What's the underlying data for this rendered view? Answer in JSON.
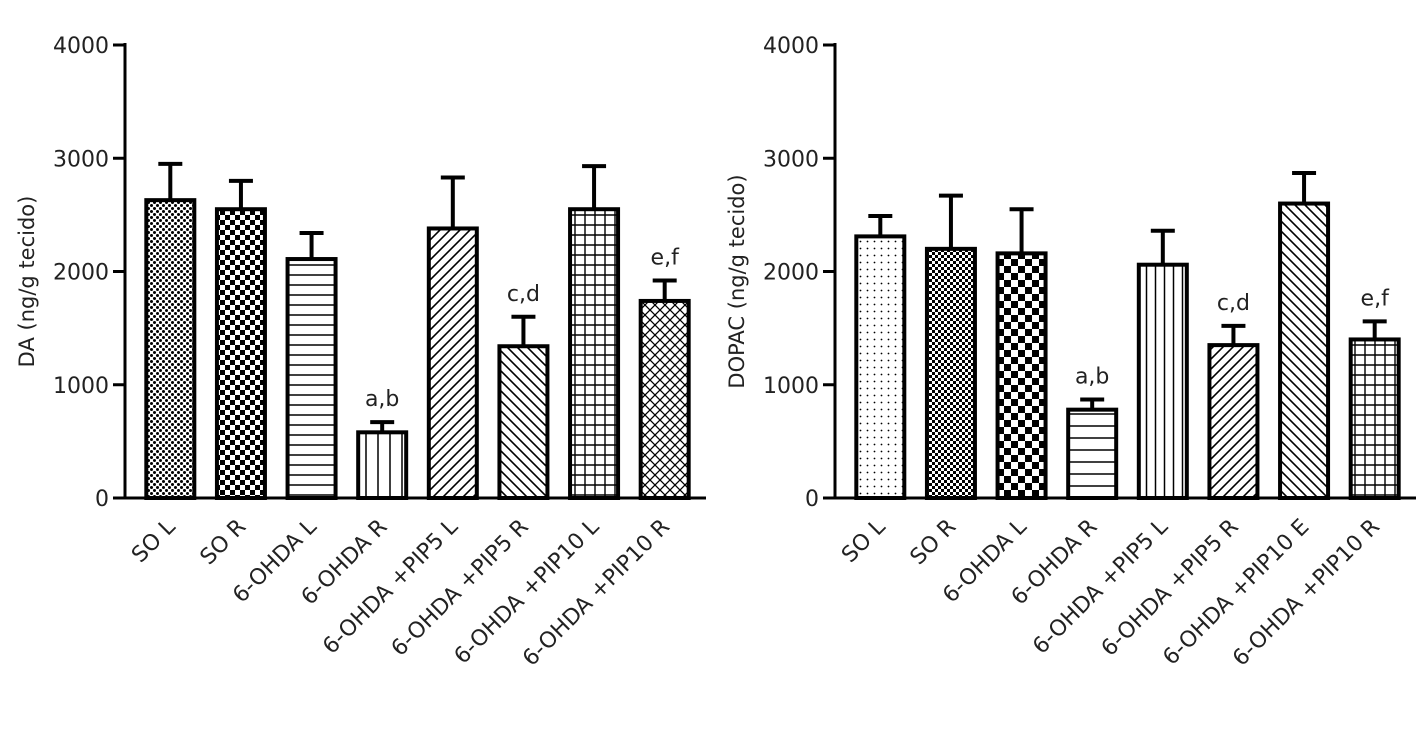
{
  "chart_data": [
    {
      "type": "bar",
      "ylabel": "DA (ng/g tecido)",
      "ylim": [
        0,
        4000
      ],
      "yticks": [
        0,
        1000,
        2000,
        3000,
        4000
      ],
      "categories": [
        "SO L",
        "SO R",
        "6-OHDA  L",
        "6-OHDA R",
        "6-OHDA +PIP5  L",
        "6-OHDA +PIP5  R",
        "6-OHDA +PIP10 L",
        "6-OHDA +PIP10 R"
      ],
      "values": [
        2630,
        2550,
        2110,
        580,
        2380,
        1340,
        2550,
        1740
      ],
      "errors": [
        320,
        250,
        230,
        90,
        450,
        260,
        380,
        180
      ],
      "patterns": [
        "dots-dense",
        "checker-small",
        "hlines",
        "vlines-wide",
        "diag-forward",
        "diag-back",
        "grid",
        "crosshatch"
      ],
      "annotations": [
        "",
        "",
        "",
        "a,b",
        "",
        "c,d",
        "",
        "e,f"
      ]
    },
    {
      "type": "bar",
      "ylabel": "DOPAC  (ng/g tecido)",
      "ylim": [
        0,
        4000
      ],
      "yticks": [
        0,
        1000,
        2000,
        3000,
        4000
      ],
      "categories": [
        "SO L",
        "SO R",
        "6-OHDA  L",
        "6-OHDA  R",
        "6-OHDA +PIP5  L",
        "6-OHDA +PIP5  R",
        "6-OHDA +PIP10 E",
        "6-OHDA +PIP10 R"
      ],
      "values": [
        2310,
        2200,
        2160,
        780,
        2060,
        1350,
        2600,
        1400
      ],
      "errors": [
        180,
        470,
        390,
        90,
        300,
        170,
        270,
        160
      ],
      "patterns": [
        "dots-sparse",
        "checker-fine",
        "checker-large",
        "hlines-wide",
        "vlines",
        "diag-forward",
        "diag-back",
        "grid"
      ],
      "annotations": [
        "",
        "",
        "",
        "a,b",
        "",
        "c,d",
        "",
        "e,f"
      ]
    }
  ]
}
